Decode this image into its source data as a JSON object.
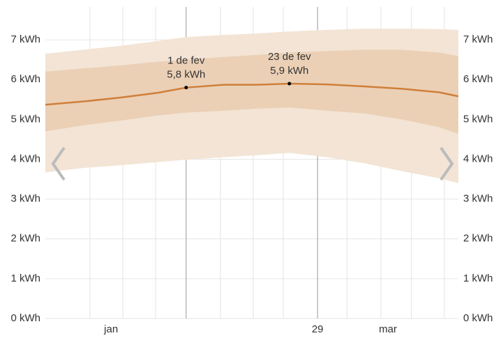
{
  "chart_data": {
    "type": "band-line",
    "x": [
      2,
      10,
      18,
      26,
      32,
      40,
      47,
      54,
      62,
      70,
      78,
      86,
      90
    ],
    "xlim": [
      2,
      90
    ],
    "xticks": [
      {
        "value": 16,
        "label": "jan"
      },
      {
        "value": 60,
        "label": "29"
      },
      {
        "value": 75,
        "label": "mar"
      }
    ],
    "xgrid": [
      11.5,
      18.5,
      25.5,
      39.3,
      46.3,
      52.7,
      66.3,
      73.5,
      80,
      87
    ],
    "xmarkers": [
      32,
      60
    ],
    "ylim": [
      0,
      7.3
    ],
    "yticks": [
      {
        "value": 0,
        "label": "0 kWh"
      },
      {
        "value": 1,
        "label": "1 kWh"
      },
      {
        "value": 2,
        "label": "2 kWh"
      },
      {
        "value": 3,
        "label": "3 kWh"
      },
      {
        "value": 4,
        "label": "4 kWh"
      },
      {
        "value": 5,
        "label": "5 kWh"
      },
      {
        "value": 6,
        "label": "6 kWh"
      },
      {
        "value": 7,
        "label": "7 kWh"
      }
    ],
    "grid": true,
    "bands": [
      {
        "color": "#f3e4d5",
        "low": [
          3.67,
          3.78,
          3.85,
          3.93,
          3.99,
          4.05,
          4.1,
          4.16,
          4.05,
          3.9,
          3.7,
          3.52,
          3.4
        ],
        "high": [
          6.65,
          6.75,
          6.85,
          6.97,
          7.07,
          7.12,
          7.16,
          7.21,
          7.25,
          7.28,
          7.28,
          7.27,
          7.25
        ]
      },
      {
        "color": "#ebd0b6",
        "low": [
          4.7,
          4.85,
          4.97,
          5.1,
          5.17,
          5.22,
          5.27,
          5.3,
          5.22,
          5.15,
          5.0,
          4.8,
          4.64
        ],
        "high": [
          6.2,
          6.28,
          6.36,
          6.45,
          6.5,
          6.57,
          6.62,
          6.68,
          6.72,
          6.75,
          6.75,
          6.68,
          6.59
        ]
      }
    ],
    "line": {
      "color": "#cf7f3a",
      "values": [
        5.37,
        5.45,
        5.55,
        5.67,
        5.8,
        5.87,
        5.87,
        5.9,
        5.88,
        5.83,
        5.77,
        5.68,
        5.58
      ]
    },
    "annotations": [
      {
        "x": 32,
        "y": 5.8,
        "date": "1 de fev",
        "label": "5,8 kWh"
      },
      {
        "x": 54,
        "y": 5.9,
        "date": "23 de fev",
        "label": "5,9 kWh"
      }
    ]
  }
}
